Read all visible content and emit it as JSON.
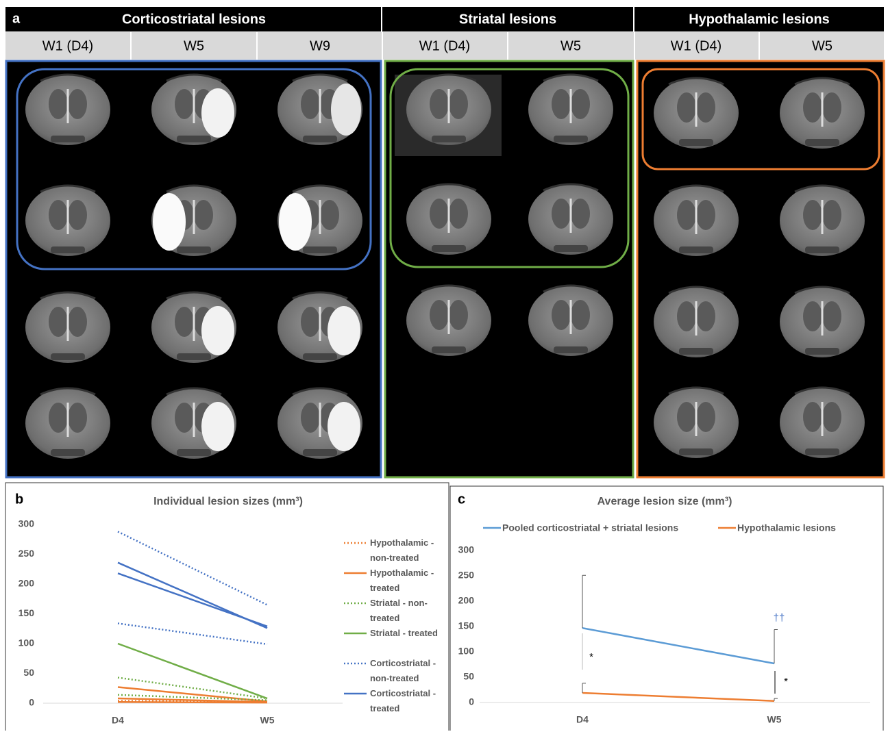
{
  "panel_a": {
    "label": "a",
    "groups": [
      {
        "title": "Corticostriatal lesions",
        "timepoints": [
          "W1 (D4)",
          "W5",
          "W9"
        ]
      },
      {
        "title": "Striatal lesions",
        "timepoints": [
          "W1 (D4)",
          "W5"
        ]
      },
      {
        "title": "Hypothalamic lesions",
        "timepoints": [
          "W1 (D4)",
          "W5"
        ]
      }
    ]
  },
  "chart_data": [
    {
      "type": "line",
      "label": "b",
      "title": "Individual lesion sizes (mm³)",
      "categories": [
        "D4",
        "W5"
      ],
      "ylim": [
        0,
        300
      ],
      "yticks": [
        0,
        50,
        100,
        150,
        200,
        250,
        300
      ],
      "legend": "right",
      "series": [
        {
          "name": "Hypothalamic - non-treated",
          "color": "#ed7d31",
          "style": "dotted",
          "values": [
            [
              4,
              2
            ]
          ]
        },
        {
          "name": "Hypothalamic - treated",
          "color": "#ed7d31",
          "style": "solid",
          "values": [
            [
              27,
              3
            ],
            [
              8,
              2
            ],
            [
              2,
              1
            ]
          ]
        },
        {
          "name": "Striatal - non-treated",
          "color": "#70ad47",
          "style": "dotted",
          "values": [
            [
              43,
              8
            ],
            [
              14,
              5
            ]
          ]
        },
        {
          "name": "Striatal - treated",
          "color": "#70ad47",
          "style": "solid",
          "values": [
            [
              100,
              8
            ]
          ]
        },
        {
          "name": "Corticostriatal - non-treated",
          "color": "#4472c4",
          "style": "dotted",
          "values": [
            [
              288,
              165
            ],
            [
              134,
              99
            ]
          ]
        },
        {
          "name": "Corticostriatal - treated",
          "color": "#4472c4",
          "style": "solid",
          "values": [
            [
              236,
              126
            ],
            [
              218,
              129
            ]
          ]
        }
      ]
    },
    {
      "type": "line",
      "label": "c",
      "title": "Average lesion size (mm³)",
      "categories": [
        "D4",
        "W5"
      ],
      "ylim": [
        0,
        300
      ],
      "yticks": [
        0,
        50,
        100,
        150,
        200,
        250,
        300
      ],
      "legend": "top",
      "series": [
        {
          "name": "Pooled corticostriatal + striatal lesions",
          "color": "#5b9bd5",
          "style": "solid",
          "values": [
            147,
            77
          ],
          "errors": [
            104,
            67
          ]
        },
        {
          "name": "Hypothalamic lesions",
          "color": "#ed7d31",
          "style": "solid",
          "values": [
            19,
            3
          ],
          "errors": [
            19,
            5
          ]
        }
      ],
      "annotations": [
        "*",
        "*",
        "††"
      ]
    }
  ]
}
